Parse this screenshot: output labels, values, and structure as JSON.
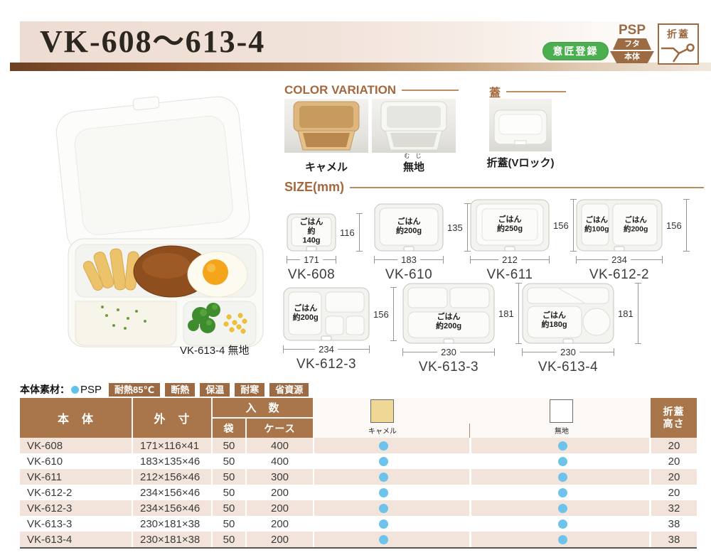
{
  "colors": {
    "brand_brown": "#9c6b43",
    "table_header_brown": "#a8764a",
    "row_stripe_pink": "#f2e4da",
    "design_badge_green": "#4bae4f",
    "dot_blue": "#6ec3ec",
    "camel_swatch": "#efd795",
    "title_bar_brown": "#6e4023"
  },
  "header": {
    "title": "VK-608〜613-4",
    "design_badge_label": "意匠登録",
    "psp_badge": {
      "material": "PSP",
      "lid_label": "フタ",
      "body_label": "本体"
    },
    "fold_lid_badge_label": "折蓋"
  },
  "main_photo": {
    "caption": "VK-613-4 無地"
  },
  "color_variation": {
    "section_title": "COLOR VARIATION",
    "items": [
      {
        "label": "キャメル",
        "furigana": ""
      },
      {
        "label": "無地",
        "furigana": "む じ"
      }
    ]
  },
  "lid_section": {
    "section_title": "蓋",
    "item_label": "折蓋(Vロック)"
  },
  "size_section": {
    "section_title": "SIZE(mm)",
    "items": [
      {
        "name": "VK-608",
        "rice_label": "ごはん\n約140g",
        "width_mm": "171",
        "height_mm": "116"
      },
      {
        "name": "VK-610",
        "rice_label": "ごはん\n約200g",
        "width_mm": "183",
        "height_mm": "135"
      },
      {
        "name": "VK-611",
        "rice_label": "ごはん\n約250g",
        "width_mm": "212",
        "height_mm": "156"
      },
      {
        "name": "VK-612-2",
        "rice_label": "ごはん\n約100g",
        "rice_label_2": "ごはん\n約200g",
        "width_mm": "234",
        "height_mm": "156"
      },
      {
        "name": "VK-612-3",
        "rice_label": "ごはん\n約200g",
        "width_mm": "234",
        "height_mm": "156"
      },
      {
        "name": "VK-613-3",
        "rice_label": "ごはん\n約200g",
        "width_mm": "230",
        "height_mm": "181"
      },
      {
        "name": "VK-613-4",
        "rice_label": "ごはん\n約180g",
        "width_mm": "230",
        "height_mm": "181"
      }
    ]
  },
  "material_line": {
    "label": "本体素材：",
    "material": "PSP",
    "feature_badges": [
      "耐熱85℃",
      "断熱",
      "保温",
      "耐寒",
      "省資源"
    ]
  },
  "table": {
    "headers": {
      "body": "本　体",
      "outer_size": "外　寸",
      "quantity": "入　数",
      "bag": "袋",
      "case": "ケース",
      "camel": "キャメル",
      "plain": "無地",
      "fold_height": "折蓋\n高さ"
    },
    "rows": [
      {
        "body": "VK-608",
        "outer": "171×116×41",
        "bag": "50",
        "case": "400",
        "camel": true,
        "plain": true,
        "fold_height": "20"
      },
      {
        "body": "VK-610",
        "outer": "183×135×46",
        "bag": "50",
        "case": "400",
        "camel": true,
        "plain": true,
        "fold_height": "20"
      },
      {
        "body": "VK-611",
        "outer": "212×156×46",
        "bag": "50",
        "case": "300",
        "camel": true,
        "plain": true,
        "fold_height": "20"
      },
      {
        "body": "VK-612-2",
        "outer": "234×156×46",
        "bag": "50",
        "case": "200",
        "camel": true,
        "plain": true,
        "fold_height": "20"
      },
      {
        "body": "VK-612-3",
        "outer": "234×156×46",
        "bag": "50",
        "case": "200",
        "camel": true,
        "plain": true,
        "fold_height": "32"
      },
      {
        "body": "VK-613-3",
        "outer": "230×181×38",
        "bag": "50",
        "case": "200",
        "camel": true,
        "plain": true,
        "fold_height": "38"
      },
      {
        "body": "VK-613-4",
        "outer": "230×181×38",
        "bag": "50",
        "case": "200",
        "camel": true,
        "plain": true,
        "fold_height": "38"
      }
    ]
  }
}
